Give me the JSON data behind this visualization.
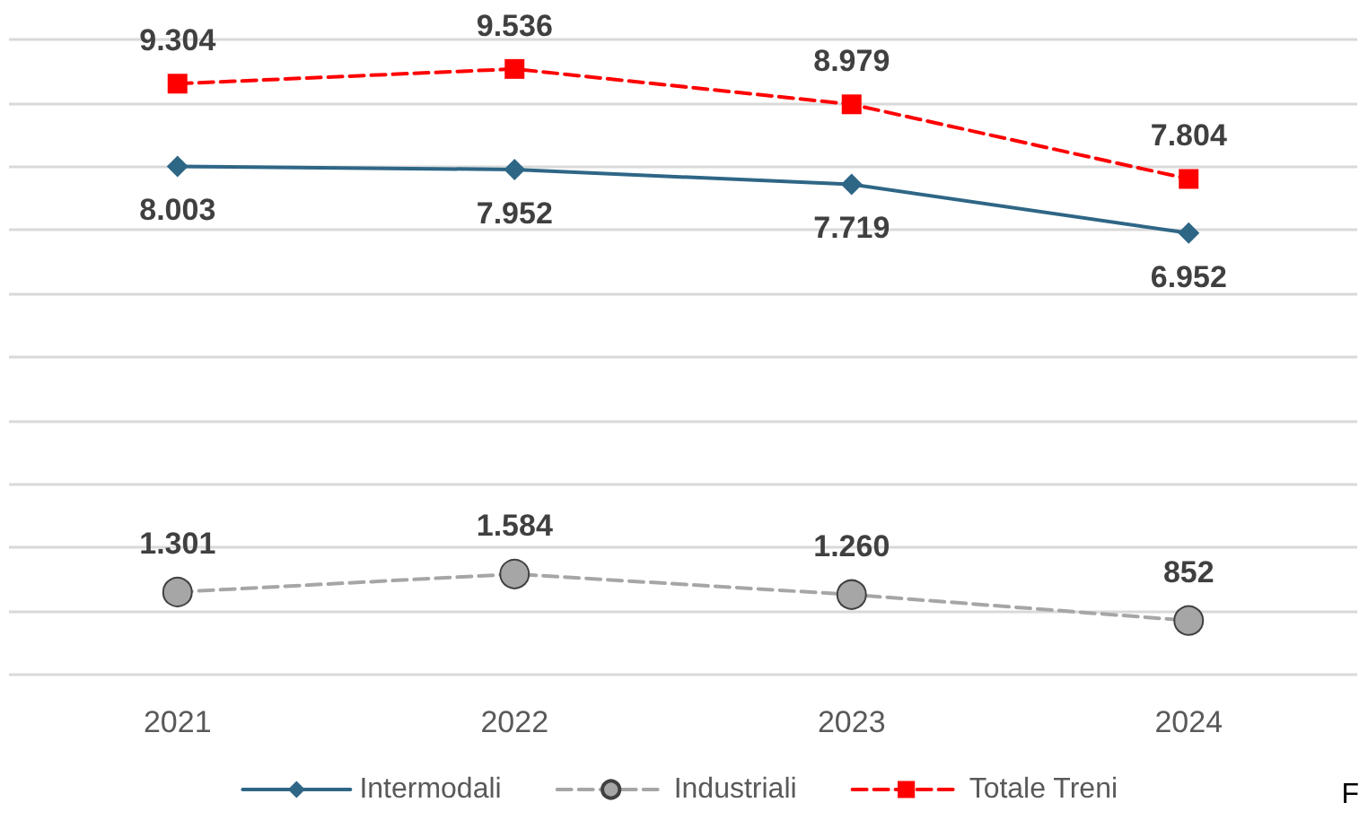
{
  "chart_data": {
    "type": "line",
    "categories": [
      "2021",
      "2022",
      "2023",
      "2024"
    ],
    "series": [
      {
        "name": "Intermodali",
        "color": "#2e6686",
        "marker": "diamond",
        "line_style": "solid",
        "values": [
          8003,
          7952,
          7719,
          6952
        ],
        "value_labels": [
          "8.003",
          "7.952",
          "7.719",
          "6.952"
        ]
      },
      {
        "name": "Industriali",
        "color": "#a6a6a6",
        "marker": "circle",
        "line_style": "dashed",
        "values": [
          1301,
          1584,
          1260,
          852
        ],
        "value_labels": [
          "1.301",
          "1.584",
          "1.260",
          "852"
        ]
      },
      {
        "name": "Totale Treni",
        "color": "#ff0000",
        "marker": "square",
        "line_style": "dashed",
        "values": [
          9304,
          9536,
          8979,
          7804
        ],
        "value_labels": [
          "9.304",
          "9.536",
          "8.979",
          "7.804"
        ]
      }
    ],
    "ylim": [
      0,
      10000
    ],
    "yticks": [
      0,
      1000,
      2000,
      3000,
      4000,
      5000,
      6000,
      7000,
      8000,
      9000,
      10000
    ],
    "tick_labels": "x",
    "grid": "y",
    "legend": "bottom",
    "annotations": [
      "F"
    ]
  }
}
